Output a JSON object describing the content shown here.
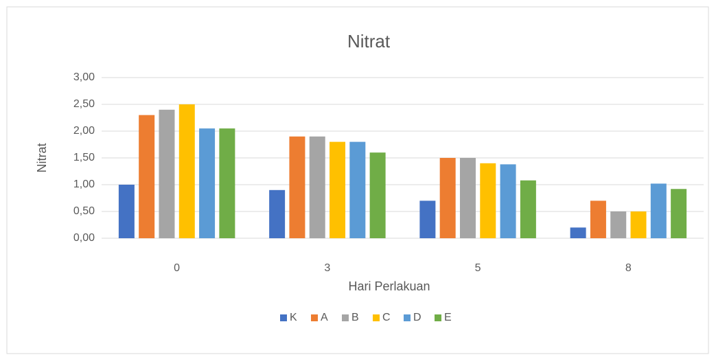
{
  "chart_data": {
    "type": "bar",
    "title": "Nitrat",
    "x_label": "Hari Perlakuan",
    "y_label": "Nitrat",
    "categories": [
      "0",
      "3",
      "5",
      "8"
    ],
    "series": [
      {
        "name": "K",
        "color": "#4472c4",
        "values": [
          1.0,
          0.9,
          0.7,
          0.2
        ]
      },
      {
        "name": "A",
        "color": "#ed7d31",
        "values": [
          2.3,
          1.9,
          1.5,
          0.7
        ]
      },
      {
        "name": "B",
        "color": "#a5a5a5",
        "values": [
          2.4,
          1.9,
          1.5,
          0.5
        ]
      },
      {
        "name": "C",
        "color": "#ffc000",
        "values": [
          2.5,
          1.8,
          1.4,
          0.5
        ]
      },
      {
        "name": "D",
        "color": "#5b9bd5",
        "values": [
          2.05,
          1.8,
          1.38,
          1.02
        ]
      },
      {
        "name": "E",
        "color": "#70ad47",
        "values": [
          2.05,
          1.6,
          1.08,
          0.92
        ]
      }
    ],
    "ylim": [
      0,
      3
    ],
    "yticks": [
      {
        "value": 0,
        "label": "0,00"
      },
      {
        "value": 0.5,
        "label": "0,50"
      },
      {
        "value": 1,
        "label": "1,00"
      },
      {
        "value": 1.5,
        "label": "1,50"
      },
      {
        "value": 2,
        "label": "2,00"
      },
      {
        "value": 2.5,
        "label": "2,50"
      },
      {
        "value": 3,
        "label": "3,00"
      }
    ],
    "grid": true,
    "legend": "bottom"
  }
}
